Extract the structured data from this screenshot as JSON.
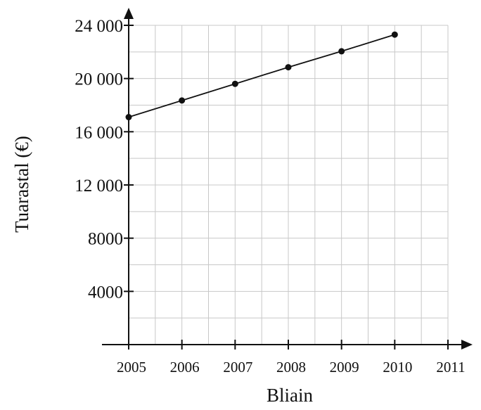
{
  "chart_data": {
    "type": "line",
    "title": "",
    "xlabel": "Bliain",
    "ylabel": "Tuarastal (€)",
    "xlim": [
      2005,
      2011
    ],
    "ylim": [
      0,
      24000
    ],
    "grid": true,
    "x_ticks": [
      2005,
      2006,
      2007,
      2008,
      2009,
      2010,
      2011
    ],
    "x_tick_labels": [
      "2005",
      "2006",
      "2007",
      "2008",
      "2009",
      "2010",
      "2011"
    ],
    "y_ticks": [
      4000,
      8000,
      12000,
      16000,
      20000,
      24000
    ],
    "y_tick_labels": [
      "4000",
      "8000",
      "12 000",
      "16 000",
      "20 000",
      "24 000"
    ],
    "series": [
      {
        "x": [
          2005,
          2006,
          2007,
          2008,
          2009,
          2010
        ],
        "values": [
          17100,
          18350,
          19600,
          20850,
          22050,
          23300
        ]
      }
    ]
  }
}
